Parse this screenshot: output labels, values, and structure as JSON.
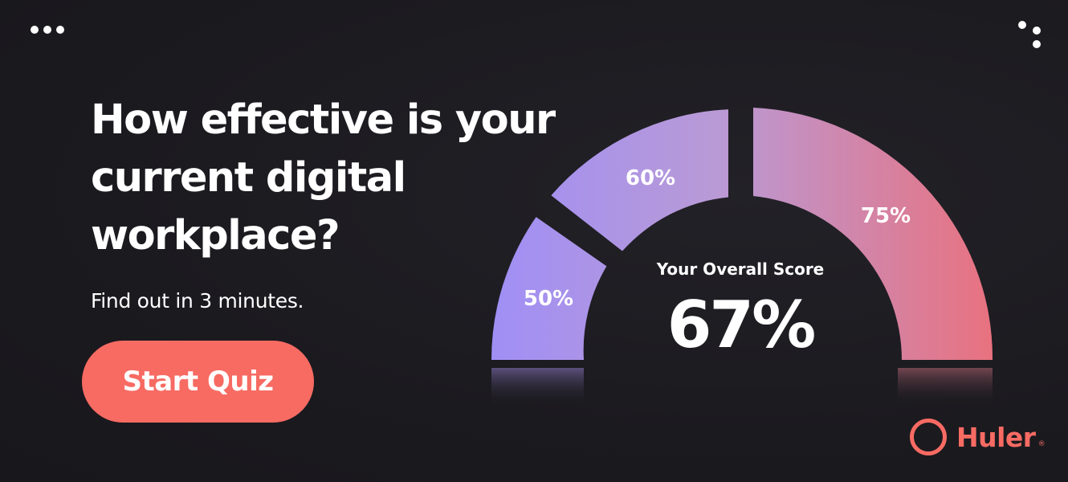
{
  "headline": {
    "line1": "How effective is your",
    "line2": "current digital",
    "line3": "workplace?"
  },
  "subline": "Find out in 3 minutes.",
  "cta_label": "Start Quiz",
  "gauge": {
    "segments": [
      {
        "label": "50%"
      },
      {
        "label": "60%"
      },
      {
        "label": "75%"
      }
    ],
    "center_label": "Your Overall Score",
    "score": "67%"
  },
  "brand": {
    "name": "Huler",
    "registered": "®"
  },
  "colors": {
    "background": "#1c1b20",
    "accent": "#f76b63",
    "gauge_start": "#9f8ff3",
    "gauge_mid": "#b399e0",
    "gauge_end": "#e57584"
  },
  "icons": {
    "top_left": "more-horizontal-icon",
    "top_right": "dots-pattern-icon"
  }
}
